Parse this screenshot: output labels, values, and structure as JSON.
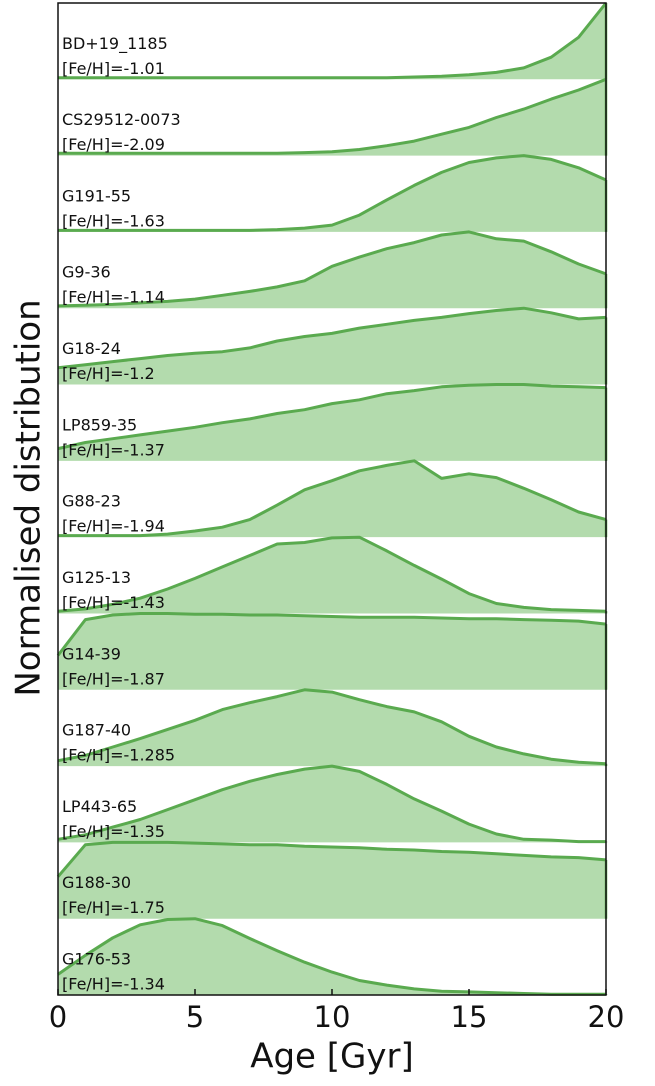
{
  "chart_data": {
    "type": "ridgeline",
    "xlabel": "Age [Gyr]",
    "ylabel": "Normalised distribution",
    "xlim": [
      0,
      20
    ],
    "xticks": [
      0,
      5,
      10,
      15,
      20
    ],
    "ylim": [
      0,
      1
    ],
    "fill_color": "#b3dbad",
    "line_color": "#5aaa4f",
    "x": [
      0,
      1,
      2,
      3,
      4,
      5,
      6,
      7,
      8,
      9,
      10,
      11,
      12,
      13,
      14,
      15,
      16,
      17,
      18,
      19,
      20
    ],
    "series": [
      {
        "name": "BD+19_1185",
        "metallicity": "[Fe/H]=-1.01",
        "values": [
          0.02,
          0.02,
          0.02,
          0.02,
          0.02,
          0.02,
          0.02,
          0.02,
          0.02,
          0.02,
          0.02,
          0.02,
          0.02,
          0.03,
          0.04,
          0.06,
          0.09,
          0.15,
          0.29,
          0.55,
          1.0
        ]
      },
      {
        "name": "CS29512-0073",
        "metallicity": "[Fe/H]=-2.09",
        "values": [
          0.03,
          0.03,
          0.03,
          0.03,
          0.03,
          0.03,
          0.03,
          0.03,
          0.03,
          0.04,
          0.05,
          0.08,
          0.13,
          0.19,
          0.28,
          0.37,
          0.5,
          0.61,
          0.74,
          0.86,
          1.0
        ]
      },
      {
        "name": "G191-55",
        "metallicity": "[Fe/H]=-1.63",
        "values": [
          0.02,
          0.02,
          0.02,
          0.02,
          0.02,
          0.02,
          0.02,
          0.02,
          0.03,
          0.05,
          0.09,
          0.22,
          0.42,
          0.61,
          0.78,
          0.91,
          0.97,
          1.0,
          0.95,
          0.84,
          0.68
        ]
      },
      {
        "name": "G9-36",
        "metallicity": "[Fe/H]=-1.14",
        "values": [
          0.03,
          0.04,
          0.05,
          0.07,
          0.09,
          0.12,
          0.17,
          0.22,
          0.28,
          0.36,
          0.55,
          0.67,
          0.78,
          0.86,
          0.96,
          1.0,
          0.91,
          0.88,
          0.74,
          0.58,
          0.45
        ]
      },
      {
        "name": "G18-24",
        "metallicity": "[Fe/H]=-1.2",
        "values": [
          0.22,
          0.26,
          0.3,
          0.34,
          0.38,
          0.41,
          0.43,
          0.48,
          0.57,
          0.63,
          0.67,
          0.74,
          0.79,
          0.84,
          0.88,
          0.93,
          0.97,
          1.0,
          0.94,
          0.86,
          0.88
        ]
      },
      {
        "name": "LP859-35",
        "metallicity": "[Fe/H]=-1.37",
        "values": [
          0.16,
          0.24,
          0.29,
          0.34,
          0.39,
          0.44,
          0.5,
          0.55,
          0.62,
          0.67,
          0.75,
          0.8,
          0.88,
          0.92,
          0.97,
          0.99,
          1.0,
          1.0,
          0.98,
          0.97,
          0.96
        ]
      },
      {
        "name": "G88-23",
        "metallicity": "[Fe/H]=-1.94",
        "values": [
          0.02,
          0.02,
          0.02,
          0.02,
          0.04,
          0.08,
          0.13,
          0.23,
          0.42,
          0.62,
          0.74,
          0.87,
          0.94,
          1.0,
          0.77,
          0.83,
          0.78,
          0.64,
          0.49,
          0.33,
          0.23
        ]
      },
      {
        "name": "G125-13",
        "metallicity": "[Fe/H]=-1.43",
        "values": [
          0.03,
          0.06,
          0.12,
          0.2,
          0.32,
          0.46,
          0.61,
          0.76,
          0.91,
          0.93,
          0.99,
          1.0,
          0.82,
          0.63,
          0.45,
          0.26,
          0.13,
          0.08,
          0.05,
          0.04,
          0.03
        ]
      },
      {
        "name": "G14-39",
        "metallicity": "[Fe/H]=-1.87",
        "values": [
          0.45,
          0.92,
          0.98,
          1.0,
          1.0,
          0.99,
          0.99,
          0.98,
          0.98,
          0.97,
          0.96,
          0.95,
          0.95,
          0.95,
          0.94,
          0.93,
          0.93,
          0.92,
          0.91,
          0.9,
          0.86
        ]
      },
      {
        "name": "G187-40",
        "metallicity": "[Fe/H]=-1.285",
        "values": [
          0.07,
          0.14,
          0.25,
          0.36,
          0.48,
          0.6,
          0.74,
          0.83,
          0.91,
          1.0,
          0.97,
          0.87,
          0.78,
          0.71,
          0.58,
          0.39,
          0.25,
          0.16,
          0.09,
          0.05,
          0.03
        ]
      },
      {
        "name": "LP443-65",
        "metallicity": "[Fe/H]=-1.35",
        "values": [
          0.04,
          0.1,
          0.2,
          0.3,
          0.43,
          0.56,
          0.69,
          0.8,
          0.89,
          0.96,
          1.0,
          0.93,
          0.76,
          0.57,
          0.41,
          0.24,
          0.11,
          0.04,
          0.03,
          0.01,
          0.01
        ]
      },
      {
        "name": "G188-30",
        "metallicity": "[Fe/H]=-1.75",
        "values": [
          0.55,
          0.97,
          1.0,
          1.0,
          1.0,
          0.99,
          0.98,
          0.97,
          0.97,
          0.95,
          0.94,
          0.93,
          0.91,
          0.9,
          0.88,
          0.87,
          0.85,
          0.83,
          0.81,
          0.8,
          0.77
        ]
      },
      {
        "name": "G176-53",
        "metallicity": "[Fe/H]=-1.34",
        "values": [
          0.27,
          0.52,
          0.75,
          0.92,
          0.99,
          1.0,
          0.91,
          0.74,
          0.58,
          0.43,
          0.3,
          0.19,
          0.13,
          0.08,
          0.05,
          0.04,
          0.03,
          0.02,
          0.01,
          0.01,
          0.01
        ]
      }
    ]
  }
}
